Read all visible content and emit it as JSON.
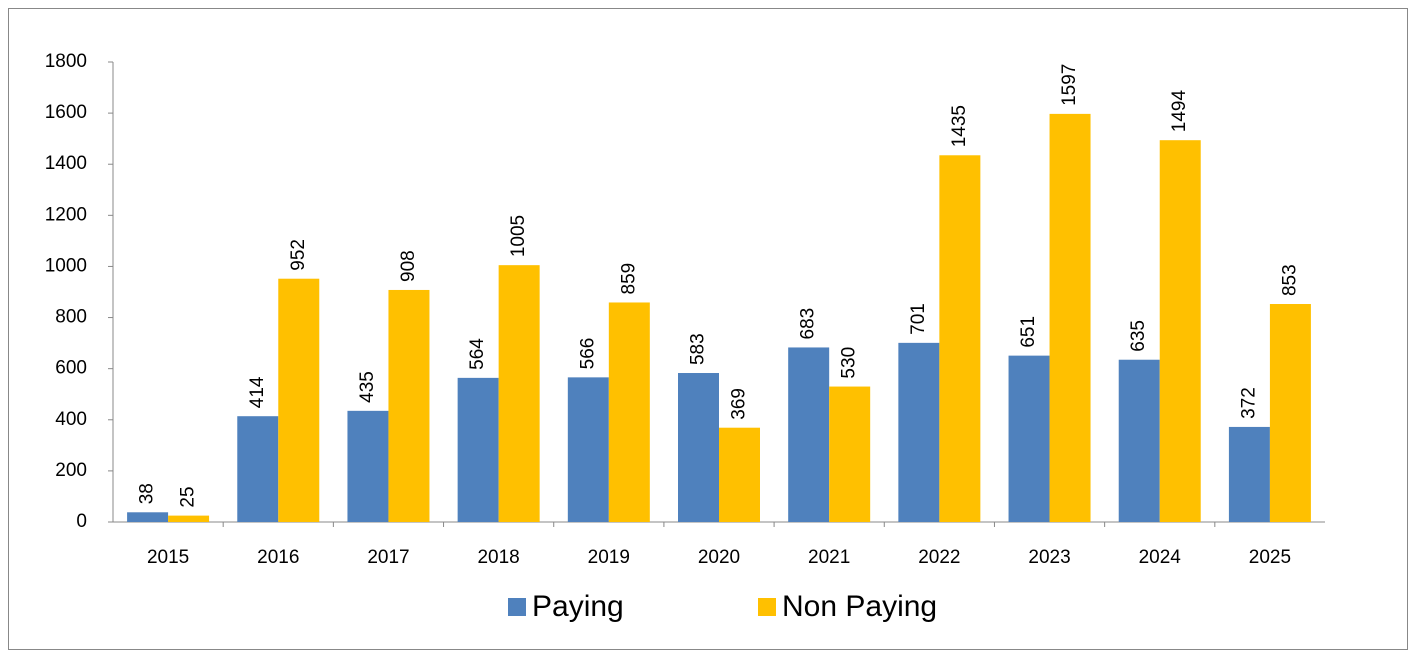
{
  "chart_data": {
    "type": "bar",
    "categories": [
      "2015",
      "2016",
      "2017",
      "2018",
      "2019",
      "2020",
      "2021",
      "2022",
      "2023",
      "2024",
      "2025"
    ],
    "series": [
      {
        "name": "Paying",
        "color": "#4f81bd",
        "values": [
          38,
          414,
          435,
          564,
          566,
          583,
          683,
          701,
          651,
          635,
          372
        ]
      },
      {
        "name": "Non Paying",
        "color": "#ffc000",
        "values": [
          25,
          952,
          908,
          1005,
          859,
          369,
          530,
          1435,
          1597,
          1494,
          853
        ]
      }
    ],
    "ylim": [
      0,
      1800
    ],
    "yticks": [
      0,
      200,
      400,
      600,
      800,
      1000,
      1200,
      1400,
      1600,
      1800
    ],
    "grid": false,
    "legend": "bottom"
  }
}
